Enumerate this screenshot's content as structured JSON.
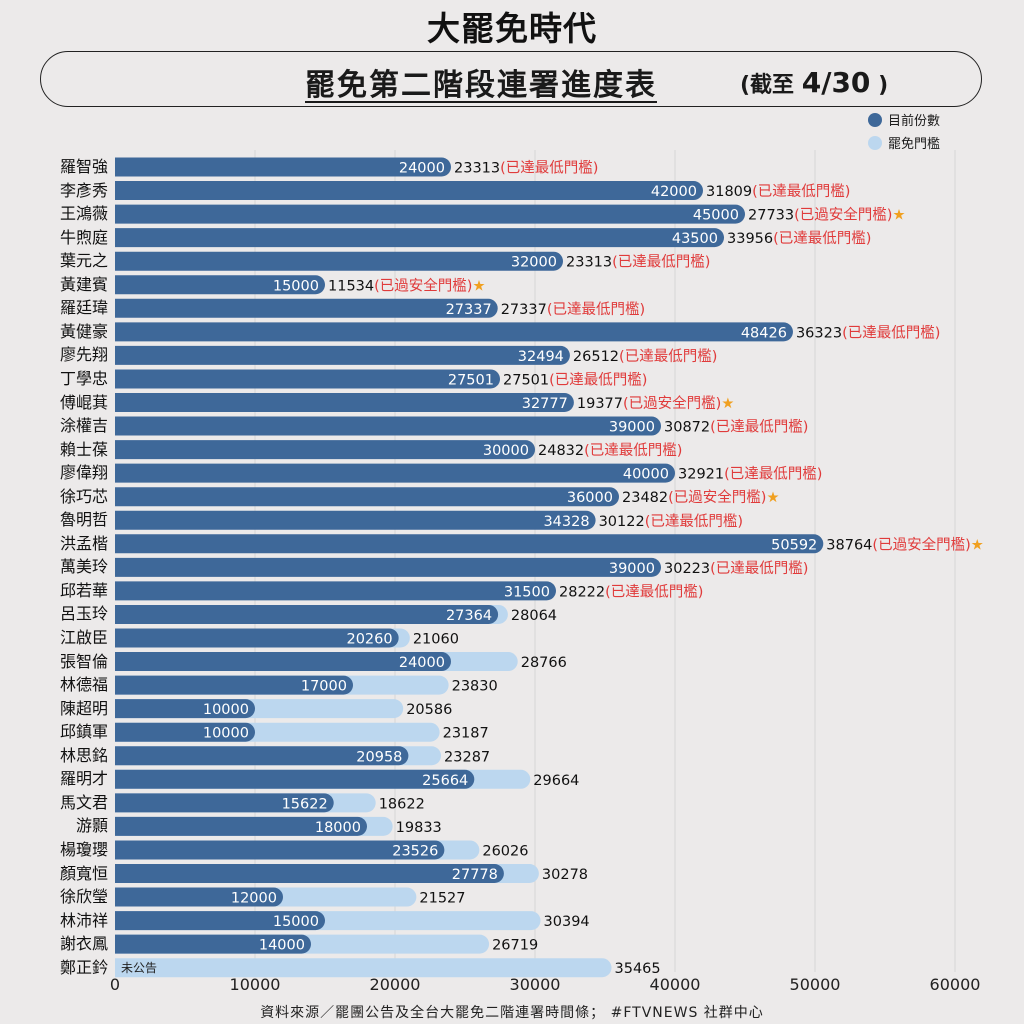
{
  "logo": "大罷免時代",
  "title": "罷免第二階段連署進度表",
  "subtitle_prefix": "(截至",
  "subtitle_date": "4/30",
  "subtitle_suffix": ")",
  "legend": [
    {
      "label": "目前份數",
      "color": "#3e6899"
    },
    {
      "label": "罷免門檻",
      "color": "#bcd7ef"
    }
  ],
  "source": "資料來源／罷團公告及全台大罷免二階連署時間條； #FTVNEWS 社群中心",
  "colors": {
    "current": "#3e6899",
    "threshold": "#bcd7ef",
    "status": "#e03b3b",
    "star": "#f0a020",
    "grid": "#d6d6d6"
  },
  "status_labels": {
    "min": "(已達最低門檻)",
    "safe": "(已過安全門檻)"
  },
  "chart_data": {
    "type": "bar",
    "orientation": "horizontal",
    "series": [
      {
        "name": "目前份數"
      },
      {
        "name": "罷免門檻"
      }
    ],
    "xlim": [
      0,
      60000
    ],
    "xticks": [
      "0",
      "10000",
      "20000",
      "30000",
      "40000",
      "50000",
      "60000"
    ],
    "xtick_values": [
      0,
      10000,
      20000,
      30000,
      40000,
      50000,
      60000
    ],
    "grid": true,
    "legend": "top-right",
    "rows": [
      {
        "name": "羅智強",
        "current": 24000,
        "threshold": 23313,
        "status": "min"
      },
      {
        "name": "李彥秀",
        "current": 42000,
        "threshold": 31809,
        "status": "min"
      },
      {
        "name": "王鴻薇",
        "current": 45000,
        "threshold": 27733,
        "status": "safe"
      },
      {
        "name": "牛煦庭",
        "current": 43500,
        "threshold": 33956,
        "status": "min"
      },
      {
        "name": "葉元之",
        "current": 32000,
        "threshold": 23313,
        "status": "min"
      },
      {
        "name": "黃建賓",
        "current": 15000,
        "threshold": 11534,
        "status": "safe"
      },
      {
        "name": "羅廷瑋",
        "current": 27337,
        "threshold": 27337,
        "status": "min"
      },
      {
        "name": "黃健豪",
        "current": 48426,
        "threshold": 36323,
        "status": "min"
      },
      {
        "name": "廖先翔",
        "current": 32494,
        "threshold": 26512,
        "status": "min"
      },
      {
        "name": "丁學忠",
        "current": 27501,
        "threshold": 27501,
        "status": "min"
      },
      {
        "name": "傅崐萁",
        "current": 32777,
        "threshold": 19377,
        "status": "safe"
      },
      {
        "name": "涂權吉",
        "current": 39000,
        "threshold": 30872,
        "status": "min"
      },
      {
        "name": "賴士葆",
        "current": 30000,
        "threshold": 24832,
        "status": "min"
      },
      {
        "name": "廖偉翔",
        "current": 40000,
        "threshold": 32921,
        "status": "min"
      },
      {
        "name": "徐巧芯",
        "current": 36000,
        "threshold": 23482,
        "status": "safe"
      },
      {
        "name": "魯明哲",
        "current": 34328,
        "threshold": 30122,
        "status": "min"
      },
      {
        "name": "洪孟楷",
        "current": 50592,
        "threshold": 38764,
        "status": "safe"
      },
      {
        "name": "萬美玲",
        "current": 39000,
        "threshold": 30223,
        "status": "min"
      },
      {
        "name": "邱若華",
        "current": 31500,
        "threshold": 28222,
        "status": "min"
      },
      {
        "name": "呂玉玲",
        "current": 27364,
        "threshold": 28064,
        "status": ""
      },
      {
        "name": "江啟臣",
        "current": 20260,
        "threshold": 21060,
        "status": ""
      },
      {
        "name": "張智倫",
        "current": 24000,
        "threshold": 28766,
        "status": ""
      },
      {
        "name": "林德福",
        "current": 17000,
        "threshold": 23830,
        "status": ""
      },
      {
        "name": "陳超明",
        "current": 10000,
        "threshold": 20586,
        "status": ""
      },
      {
        "name": "邱鎮軍",
        "current": 10000,
        "threshold": 23187,
        "status": ""
      },
      {
        "name": "林思銘",
        "current": 20958,
        "threshold": 23287,
        "status": ""
      },
      {
        "name": "羅明才",
        "current": 25664,
        "threshold": 29664,
        "status": ""
      },
      {
        "name": "馬文君",
        "current": 15622,
        "threshold": 18622,
        "status": ""
      },
      {
        "name": "游顥",
        "current": 18000,
        "threshold": 19833,
        "status": ""
      },
      {
        "name": "楊瓊瓔",
        "current": 23526,
        "threshold": 26026,
        "status": ""
      },
      {
        "name": "顏寬恒",
        "current": 27778,
        "threshold": 30278,
        "status": ""
      },
      {
        "name": "徐欣瑩",
        "current": 12000,
        "threshold": 21527,
        "status": ""
      },
      {
        "name": "林沛祥",
        "current": 15000,
        "threshold": 30394,
        "status": ""
      },
      {
        "name": "謝衣鳳",
        "current": 14000,
        "threshold": 26719,
        "status": ""
      },
      {
        "name": "鄭正鈐",
        "current": null,
        "current_label": "未公告",
        "threshold": 35465,
        "status": ""
      }
    ]
  }
}
